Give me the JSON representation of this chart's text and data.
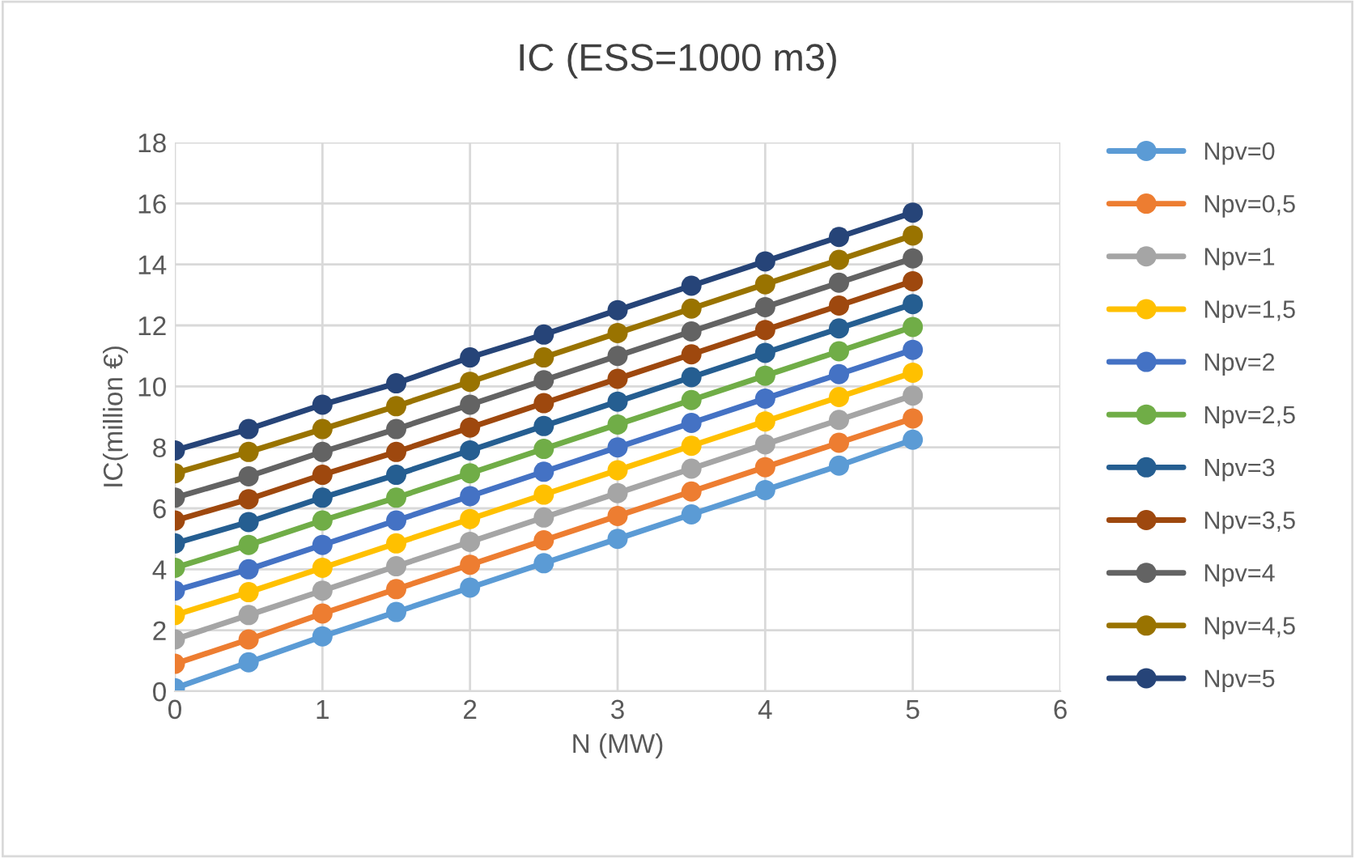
{
  "chart_data": {
    "type": "line",
    "title": "IC (ESS=1000 m3)",
    "xlabel": "N (MW)",
    "ylabel": "IC(million €)",
    "x": [
      0,
      0.5,
      1,
      1.5,
      2,
      2.5,
      3,
      3.5,
      4,
      4.5,
      5
    ],
    "xlim": [
      0,
      6
    ],
    "xticks": [
      0,
      1,
      2,
      3,
      4,
      5,
      6
    ],
    "ylim": [
      0,
      18
    ],
    "yticks": [
      0,
      2,
      4,
      6,
      8,
      10,
      12,
      14,
      16,
      18
    ],
    "grid": true,
    "legend": "right",
    "marker": "circle",
    "line_style": "solid",
    "series": [
      {
        "name": "Npv=0",
        "color": "#5b9bd5",
        "values": [
          0.1,
          0.95,
          1.8,
          2.6,
          3.4,
          4.2,
          5.0,
          5.8,
          6.6,
          7.4,
          8.25
        ]
      },
      {
        "name": "Npv=0,5",
        "color": "#ed7d31",
        "values": [
          0.9,
          1.7,
          2.55,
          3.35,
          4.15,
          4.95,
          5.75,
          6.55,
          7.35,
          8.15,
          8.95
        ]
      },
      {
        "name": "Npv=1",
        "color": "#a5a5a5",
        "values": [
          1.7,
          2.5,
          3.3,
          4.1,
          4.9,
          5.7,
          6.5,
          7.3,
          8.1,
          8.9,
          9.7
        ]
      },
      {
        "name": "Npv=1,5",
        "color": "#ffc000",
        "values": [
          2.5,
          3.25,
          4.05,
          4.85,
          5.65,
          6.45,
          7.25,
          8.05,
          8.85,
          9.65,
          10.45
        ]
      },
      {
        "name": "Npv=2",
        "color": "#4472c4",
        "values": [
          3.3,
          4.0,
          4.8,
          5.6,
          6.4,
          7.2,
          8.0,
          8.8,
          9.6,
          10.4,
          11.2
        ]
      },
      {
        "name": "Npv=2,5",
        "color": "#70ad47",
        "values": [
          4.05,
          4.8,
          5.6,
          6.35,
          7.15,
          7.95,
          8.75,
          9.55,
          10.35,
          11.15,
          11.95
        ]
      },
      {
        "name": "Npv=3",
        "color": "#255e91",
        "values": [
          4.85,
          5.55,
          6.35,
          7.1,
          7.9,
          8.7,
          9.5,
          10.3,
          11.1,
          11.9,
          12.7
        ]
      },
      {
        "name": "Npv=3,5",
        "color": "#9e480e",
        "values": [
          5.6,
          6.3,
          7.1,
          7.85,
          8.65,
          9.45,
          10.25,
          11.05,
          11.85,
          12.65,
          13.45
        ]
      },
      {
        "name": "Npv=4",
        "color": "#636363",
        "values": [
          6.35,
          7.05,
          7.85,
          8.6,
          9.4,
          10.2,
          11.0,
          11.8,
          12.6,
          13.4,
          14.2
        ]
      },
      {
        "name": "Npv=4,5",
        "color": "#997300",
        "values": [
          7.15,
          7.85,
          8.6,
          9.35,
          10.15,
          10.95,
          11.75,
          12.55,
          13.35,
          14.15,
          14.95
        ]
      },
      {
        "name": "Npv=5",
        "color": "#264478",
        "values": [
          7.9,
          8.6,
          9.4,
          10.1,
          10.95,
          11.7,
          12.5,
          13.3,
          14.1,
          14.9,
          15.7
        ]
      }
    ]
  }
}
